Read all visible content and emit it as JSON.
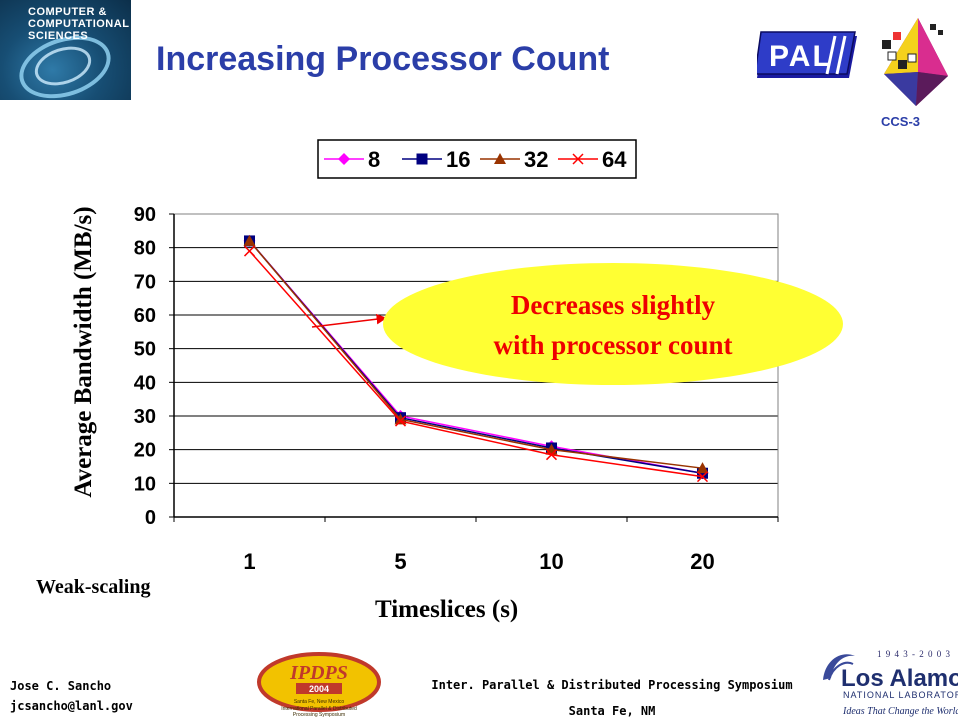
{
  "slide": {
    "title": "Increasing Processor Count",
    "ccs_logo_lines": [
      "COMPUTER &",
      "COMPUTATIONAL",
      "SCIENCES"
    ],
    "pal_logo": "PAL",
    "group_label": "CCS-3",
    "author_name": "Jose C. Sancho",
    "author_email": "jcsancho@lanl.gov",
    "conference_name": "Inter. Parallel & Distributed Processing Symposium",
    "conference_location": "Santa Fe, NM",
    "ipdps_logo": {
      "title": "IPDPS",
      "year": "2004",
      "line1": "Santa Fe, New Mexico",
      "line2": "International Parallel & Distributed",
      "line3": "Processing Symposium"
    },
    "lanl_logo": {
      "years": "1 9 4 3 - 2 0 0 3",
      "name": "Los Alamos",
      "sub": "NATIONAL LABORATORY",
      "tagline": "Ideas That Change the World"
    },
    "weak_scaling_label": "Weak-scaling"
  },
  "chart_data": {
    "type": "line",
    "title": "",
    "xlabel": "Timeslices (s)",
    "ylabel": "Average Bandwidth (MB/s)",
    "categories": [
      "1",
      "5",
      "10",
      "20"
    ],
    "ylim": [
      0,
      90
    ],
    "yticks": [
      0,
      10,
      20,
      30,
      40,
      50,
      60,
      70,
      80,
      90
    ],
    "grid": "horizontal",
    "legend_position": "top",
    "series": [
      {
        "name": "8",
        "color": "#ff00ff",
        "marker": "diamond",
        "values": [
          82,
          30,
          21,
          13
        ]
      },
      {
        "name": "16",
        "color": "#000080",
        "marker": "square",
        "values": [
          82,
          29.5,
          20.5,
          13
        ]
      },
      {
        "name": "32",
        "color": "#993300",
        "marker": "triangle",
        "values": [
          82,
          29,
          20,
          14.5
        ]
      },
      {
        "name": "64",
        "color": "#ff0000",
        "marker": "x",
        "values": [
          79,
          28.5,
          18.5,
          12
        ]
      }
    ],
    "annotation": {
      "line1": "Decreases slightly",
      "line2": "with processor count",
      "color": "#ee0000",
      "fill": "#ffff33"
    }
  }
}
